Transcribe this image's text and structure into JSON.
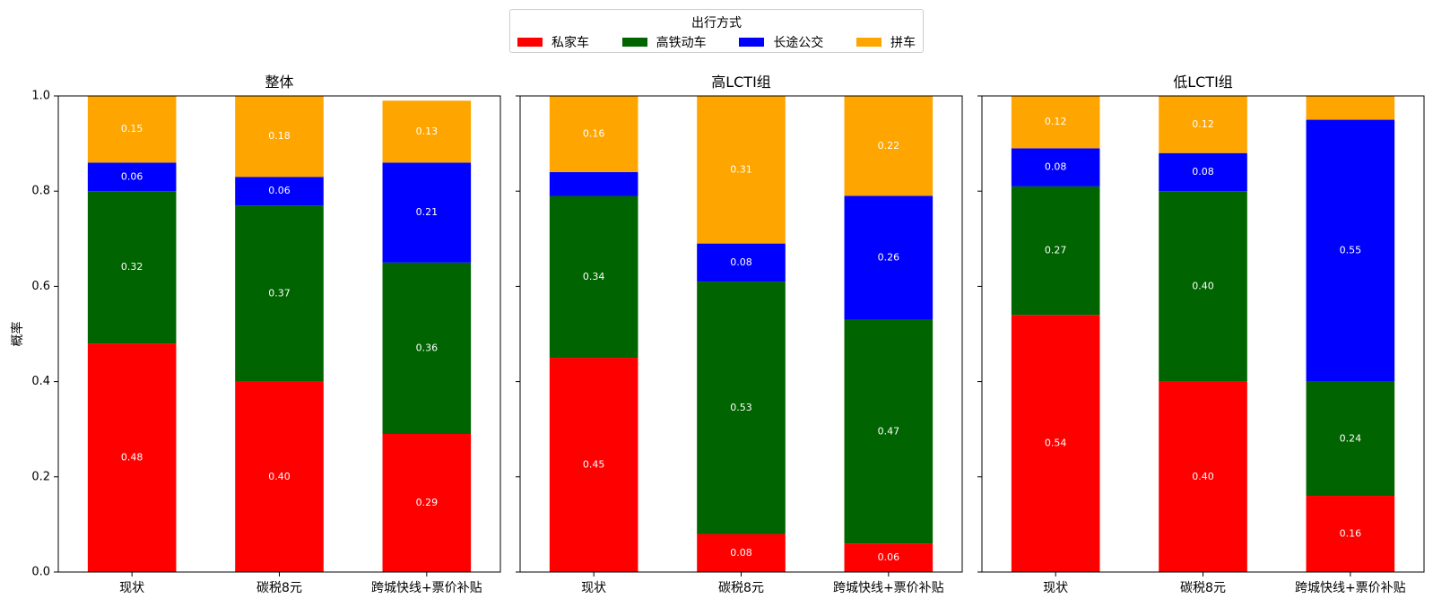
{
  "legend": {
    "title": "出行方式"
  },
  "chart_data": {
    "type": "bar",
    "stacked": true,
    "ylabel": "概率",
    "ylim": [
      0,
      1.0
    ],
    "yticks": [
      "0.0",
      "0.2",
      "0.4",
      "0.6",
      "0.8",
      "1.0"
    ],
    "grid": false,
    "legend_position": "top-center",
    "categories": [
      "现状",
      "碳税8元",
      "跨城快线+票价补贴"
    ],
    "series_names": [
      "私家车",
      "高铁动车",
      "长途公交",
      "拼车"
    ],
    "colors": {
      "私家车": "#ff0000",
      "高铁动车": "#006400",
      "长途公交": "#0000ff",
      "拼车": "#ffa500"
    },
    "panels": [
      {
        "title": "整体",
        "series": [
          {
            "name": "私家车",
            "values": [
              0.48,
              0.4,
              0.29
            ]
          },
          {
            "name": "高铁动车",
            "values": [
              0.32,
              0.37,
              0.36
            ]
          },
          {
            "name": "长途公交",
            "values": [
              0.06,
              0.06,
              0.21
            ]
          },
          {
            "name": "拼车",
            "values": [
              0.15,
              0.18,
              0.13
            ]
          }
        ],
        "labels": [
          [
            "0.48",
            "0.40",
            "0.29"
          ],
          [
            "0.32",
            "0.37",
            "0.36"
          ],
          [
            "0.06",
            "0.06",
            "0.21"
          ],
          [
            "0.15",
            "0.18",
            "0.13"
          ]
        ]
      },
      {
        "title": "高LCTI组",
        "series": [
          {
            "name": "私家车",
            "values": [
              0.45,
              0.08,
              0.06
            ]
          },
          {
            "name": "高铁动车",
            "values": [
              0.34,
              0.53,
              0.47
            ]
          },
          {
            "name": "长途公交",
            "values": [
              0.05,
              0.08,
              0.26
            ]
          },
          {
            "name": "拼车",
            "values": [
              0.16,
              0.31,
              0.22
            ]
          }
        ],
        "labels": [
          [
            "0.45",
            "0.08",
            "0.06"
          ],
          [
            "0.34",
            "0.53",
            "0.47"
          ],
          [
            "",
            "0.08",
            "0.26"
          ],
          [
            "0.16",
            "0.31",
            "0.22"
          ]
        ]
      },
      {
        "title": "低LCTI组",
        "series": [
          {
            "name": "私家车",
            "values": [
              0.54,
              0.4,
              0.16
            ]
          },
          {
            "name": "高铁动车",
            "values": [
              0.27,
              0.4,
              0.24
            ]
          },
          {
            "name": "长途公交",
            "values": [
              0.08,
              0.08,
              0.55
            ]
          },
          {
            "name": "拼车",
            "values": [
              0.12,
              0.12,
              0.05
            ]
          }
        ],
        "labels": [
          [
            "0.54",
            "0.40",
            "0.16"
          ],
          [
            "0.27",
            "0.40",
            "0.24"
          ],
          [
            "0.08",
            "0.08",
            "0.55"
          ],
          [
            "0.12",
            "0.12",
            ""
          ]
        ]
      }
    ]
  }
}
